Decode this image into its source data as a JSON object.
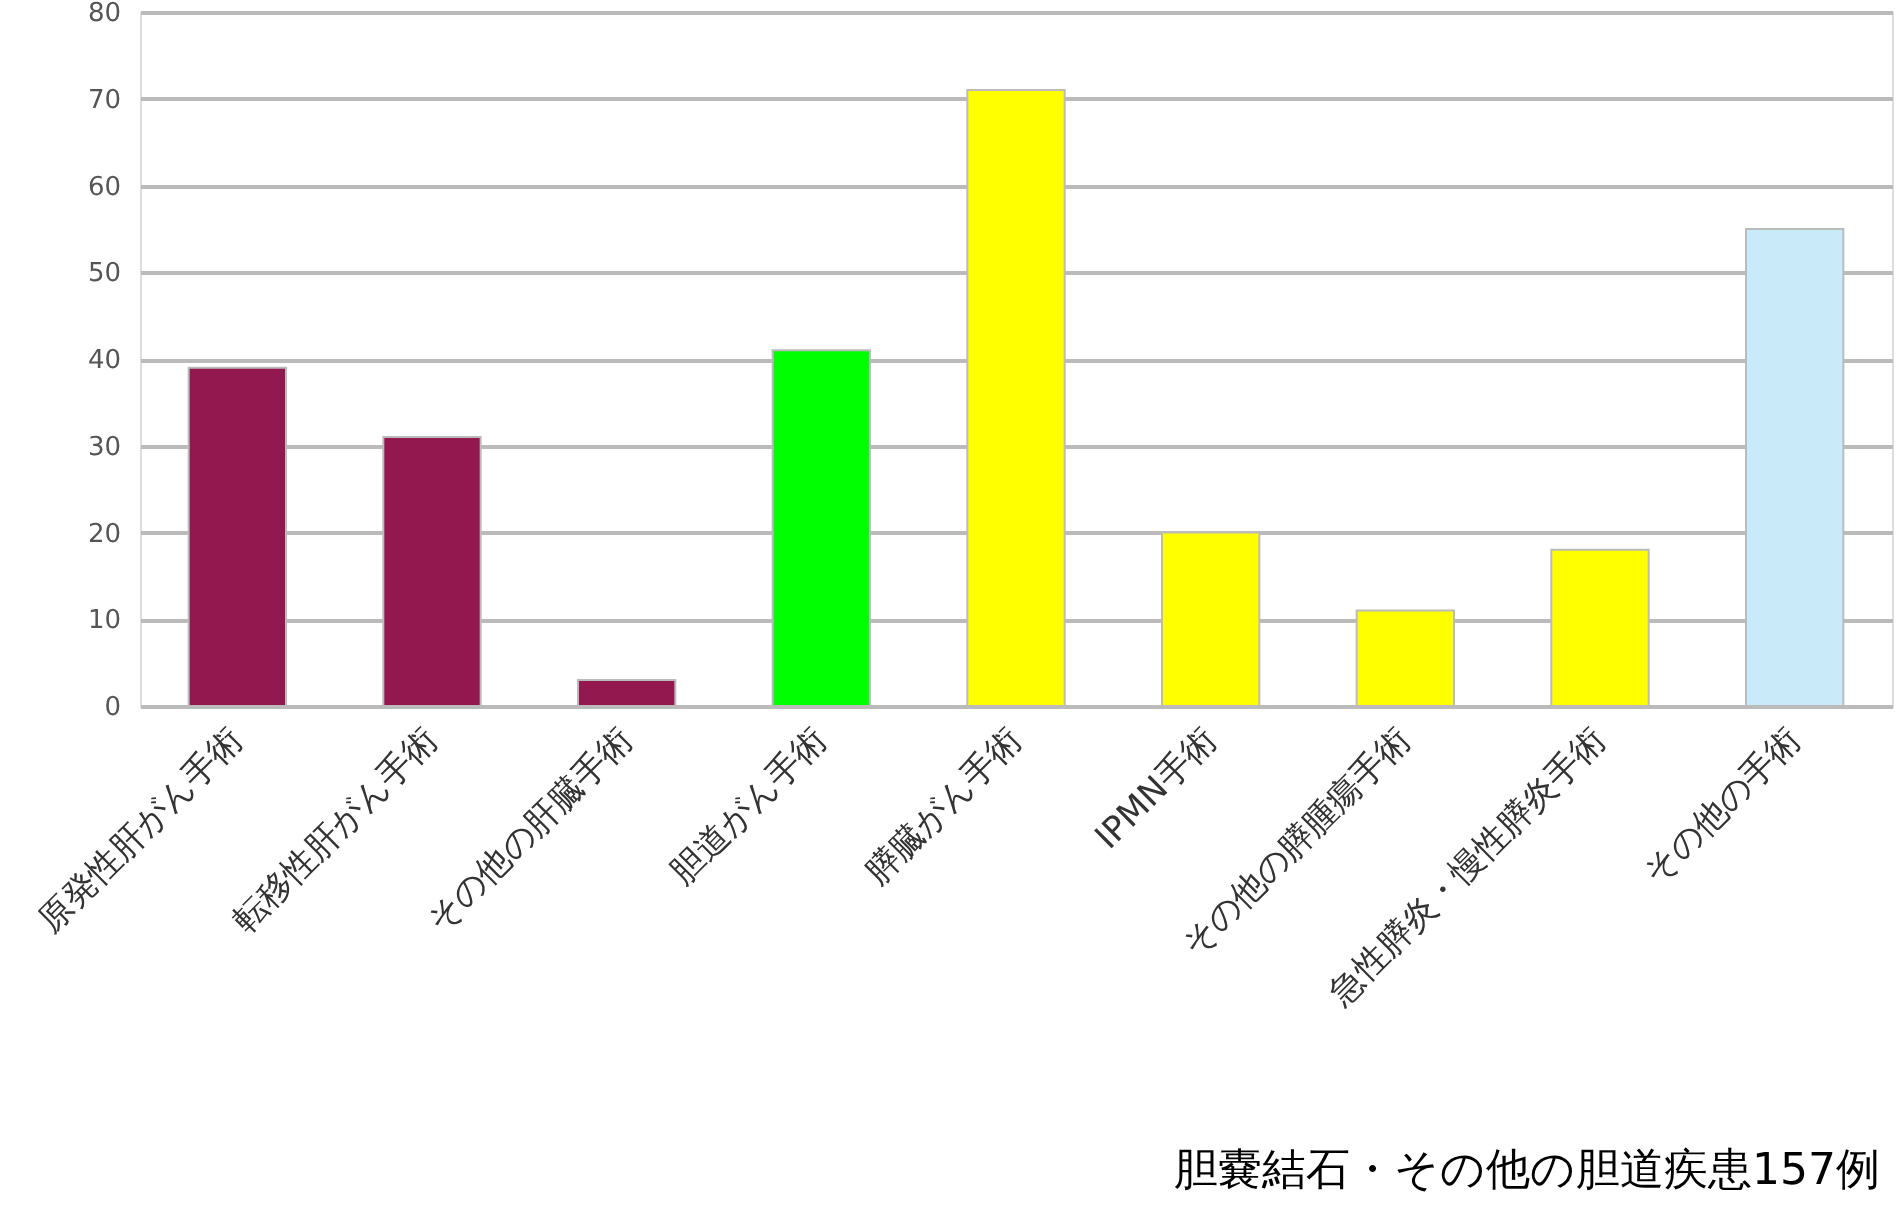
{
  "chart_data": {
    "type": "bar",
    "categories": [
      "原発性肝がん手術",
      "転移性肝がん手術",
      "その他の肝臓手術",
      "胆道がん手術",
      "膵臓がん手術",
      "IPMN手術",
      "その他の膵腫瘍手術",
      "急性膵炎・慢性膵炎手術",
      "その他の手術"
    ],
    "values": [
      39,
      31,
      3,
      41,
      71,
      20,
      11,
      18,
      55
    ],
    "colors": [
      "#931850",
      "#931850",
      "#931850",
      "#00ff00",
      "#ffff00",
      "#ffff00",
      "#ffff00",
      "#ffff00",
      "#c9ebf9"
    ],
    "ylim": [
      0,
      80
    ],
    "yticks": [
      0,
      10,
      20,
      30,
      40,
      50,
      60,
      70,
      80
    ],
    "grid": "y",
    "annotations": [
      "胆嚢結石・その他の胆道疾患157例"
    ]
  }
}
